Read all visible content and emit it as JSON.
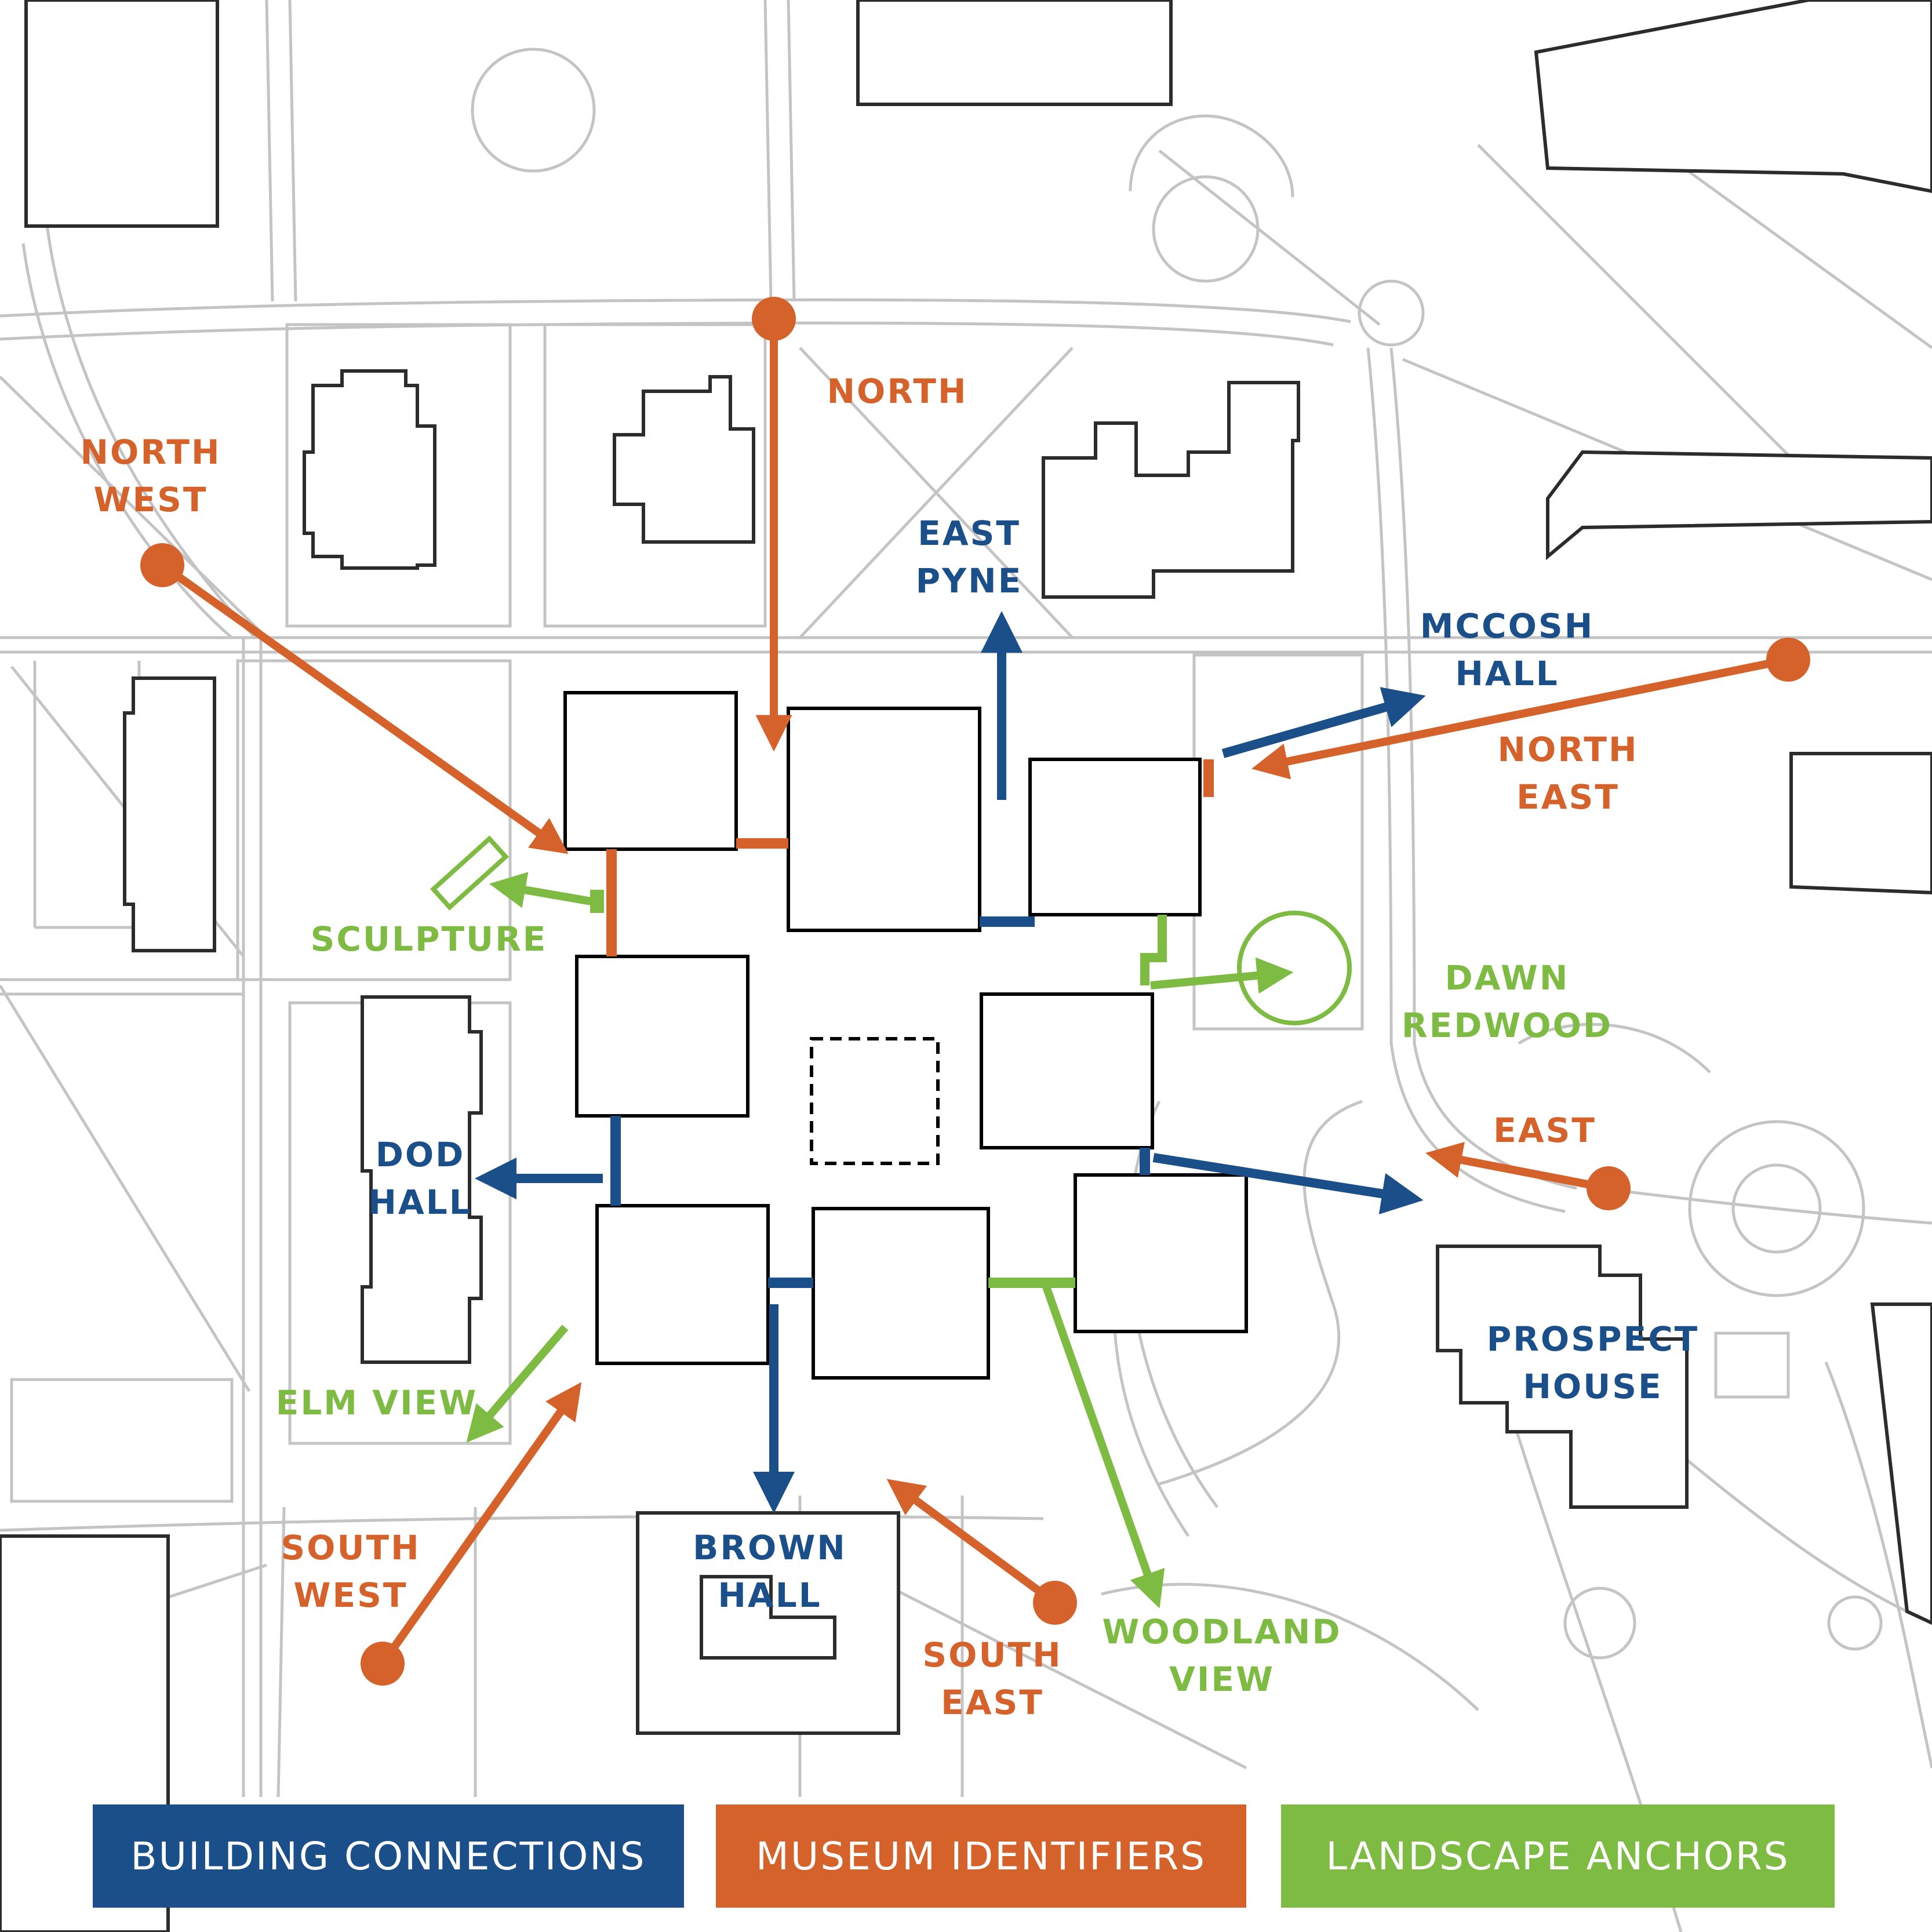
{
  "colors": {
    "building_connections": "#1b4f8a",
    "museum_identifiers": "#d4622a",
    "landscape_anchors": "#7dbb42",
    "basemap": "#c7c7c7"
  },
  "labels": {
    "north": "NORTH",
    "north_west_1": "NORTH",
    "north_west_2": "WEST",
    "north_east_1": "NORTH",
    "north_east_2": "EAST",
    "east": "EAST",
    "south_west_1": "SOUTH",
    "south_west_2": "WEST",
    "south_east_1": "SOUTH",
    "south_east_2": "EAST",
    "east_pyne_1": "EAST",
    "east_pyne_2": "PYNE",
    "mccosh_1": "MCCOSH",
    "mccosh_2": "HALL",
    "dod_1": "DOD",
    "dod_2": "HALL",
    "brown_1": "BROWN",
    "brown_2": "HALL",
    "prospect_1": "PROSPECT",
    "prospect_2": "HOUSE",
    "sculpture": "SCULPTURE",
    "dawn_1": "DAWN",
    "dawn_2": "REDWOOD",
    "elm": "ELM VIEW",
    "woodland_1": "WOODLAND",
    "woodland_2": "VIEW"
  },
  "legend": {
    "building": "BUILDING CONNECTIONS",
    "museum": "MUSEUM IDENTIFIERS",
    "landscape": "LANDSCAPE ANCHORS"
  }
}
